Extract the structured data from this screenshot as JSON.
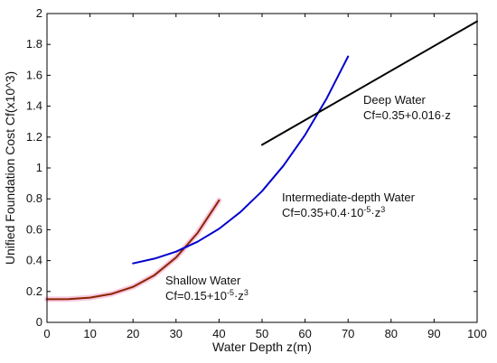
{
  "chart_data": {
    "type": "line",
    "title": "",
    "xlabel": "Water Depth z(m)",
    "ylabel": "Unified Foundation Cost Cf(x10^3)",
    "xlim": [
      0,
      100
    ],
    "ylim": [
      0,
      2
    ],
    "xticks": [
      0,
      10,
      20,
      30,
      40,
      50,
      60,
      70,
      80,
      90,
      100
    ],
    "yticks": [
      0,
      0.2,
      0.4,
      0.6,
      0.8,
      1,
      1.2,
      1.4,
      1.6,
      1.8,
      2
    ],
    "ytick_labels": [
      "0",
      "0.2",
      "0.4",
      "0.6",
      "0.8",
      "1",
      "1.2",
      "1.4",
      "1.6",
      "1.8",
      "2"
    ],
    "grid": false,
    "series": [
      {
        "key": "shallow",
        "color": "#8b2500",
        "highlight_color": "#f7c8e0",
        "x": [
          0,
          5,
          10,
          15,
          20,
          25,
          30,
          35,
          40
        ],
        "y": [
          0.15,
          0.151,
          0.16,
          0.184,
          0.23,
          0.306,
          0.42,
          0.579,
          0.79
        ]
      },
      {
        "key": "intermediate",
        "color": "#0000cc",
        "x": [
          20,
          25,
          30,
          35,
          40,
          45,
          50,
          55,
          60,
          65,
          70
        ],
        "y": [
          0.382,
          0.413,
          0.458,
          0.522,
          0.606,
          0.715,
          0.85,
          1.016,
          1.214,
          1.449,
          1.722
        ]
      },
      {
        "key": "deep",
        "color": "#000000",
        "x": [
          50,
          100
        ],
        "y": [
          1.15,
          1.95
        ]
      }
    ],
    "annotations": [
      {
        "key": "deep_name",
        "text": "Deep Water"
      },
      {
        "key": "deep_formula",
        "parts": [
          "Cf=0.35+0.016·z"
        ]
      },
      {
        "key": "inter_name",
        "text": "Intermediate-depth Water"
      },
      {
        "key": "inter_formula",
        "parts": [
          "Cf=0.35+0.4·10",
          "-5",
          "·z",
          "3"
        ]
      },
      {
        "key": "shallow_name",
        "text": "Shallow Water"
      },
      {
        "key": "shallow_formula",
        "parts": [
          "Cf=0.15+10",
          "-5",
          "·z",
          "3"
        ]
      }
    ]
  }
}
